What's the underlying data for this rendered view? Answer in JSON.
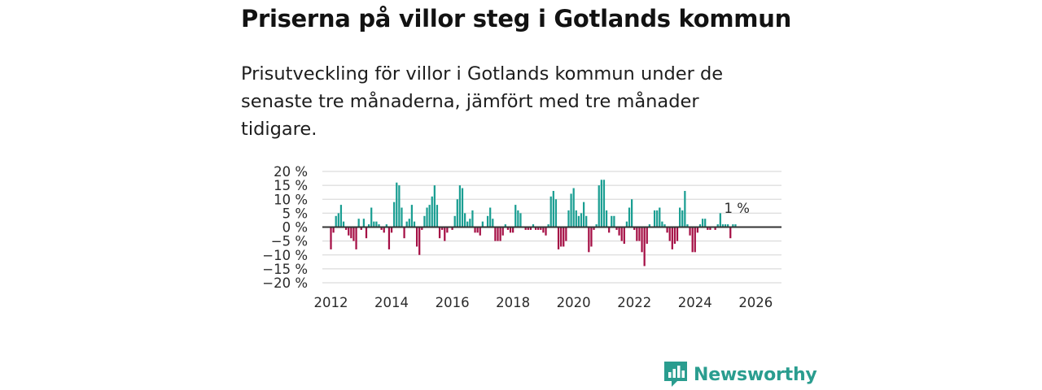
{
  "header": {
    "title": "Priserna på villor steg i Gotlands kommun",
    "subtitle": "Prisutveckling för villor i Gotlands kommun under de senaste tre månaderna, jämfört med tre månader tidigare."
  },
  "brand": {
    "name": "Newsworthy",
    "icon": "newsworthy-logo-icon"
  },
  "colors": {
    "positive": "#1a9e92",
    "negative": "#a50f45",
    "grid": "#dcdcdc",
    "zero": "#333333"
  },
  "chart_data": {
    "type": "bar",
    "title": "Priserna på villor steg i Gotlands kommun",
    "xlabel": "",
    "ylabel": "",
    "ylim": [
      -20,
      20
    ],
    "y_ticks": [
      20,
      15,
      10,
      5,
      0,
      -5,
      -10,
      -15,
      -20
    ],
    "y_tick_labels": [
      "20 %",
      "15 %",
      "10 %",
      "5 %",
      "0 %",
      "−5 %",
      "−10 %",
      "−15 %",
      "−20 %"
    ],
    "xlim": [
      2011.45,
      2026.85
    ],
    "x_ticks": [
      2012,
      2014,
      2016,
      2018,
      2020,
      2022,
      2024,
      2026
    ],
    "x_tick_labels": [
      "2012",
      "2014",
      "2016",
      "2018",
      "2020",
      "2022",
      "2024",
      "2026"
    ],
    "start": 2012.0,
    "step": 0.0833333,
    "values": [
      -8,
      -2,
      4,
      5,
      8,
      2,
      -1,
      -3,
      -4,
      -5,
      -8,
      3,
      -1,
      3,
      -4,
      1,
      7,
      2,
      2,
      1,
      -1,
      -2,
      1,
      -8,
      -2,
      9,
      16,
      15,
      7,
      -4,
      2,
      3,
      8,
      2,
      -7,
      -10,
      -1,
      4,
      7,
      8,
      11,
      15,
      8,
      -4,
      -1,
      -5,
      -2,
      0,
      -1,
      4,
      10,
      15,
      14,
      5,
      2,
      3,
      6,
      -2,
      -2,
      -3,
      2,
      0,
      4,
      7,
      3,
      -5,
      -5,
      -5,
      -3,
      1,
      -1,
      -2,
      -2,
      8,
      6,
      5,
      0,
      -1,
      -1,
      -1,
      1,
      -1,
      -1,
      -1,
      -2,
      -3,
      1,
      11,
      13,
      10,
      -8,
      -7,
      -7,
      -5,
      6,
      12,
      14,
      6,
      4,
      5,
      9,
      4,
      -9,
      -7,
      -1,
      1,
      15,
      17,
      17,
      6,
      -2,
      4,
      4,
      -1,
      -3,
      -5,
      -6,
      2,
      7,
      10,
      -1,
      -5,
      -5,
      -9,
      -14,
      -6,
      1,
      0,
      6,
      6,
      7,
      2,
      1,
      -2,
      -5,
      -8,
      -6,
      -5,
      7,
      6,
      13,
      1,
      -3,
      -9,
      -9,
      -2,
      1,
      3,
      3,
      -1,
      -1,
      0,
      -1,
      1,
      5,
      1,
      1,
      1,
      -4,
      1,
      1
    ],
    "last_label": "1 %"
  }
}
